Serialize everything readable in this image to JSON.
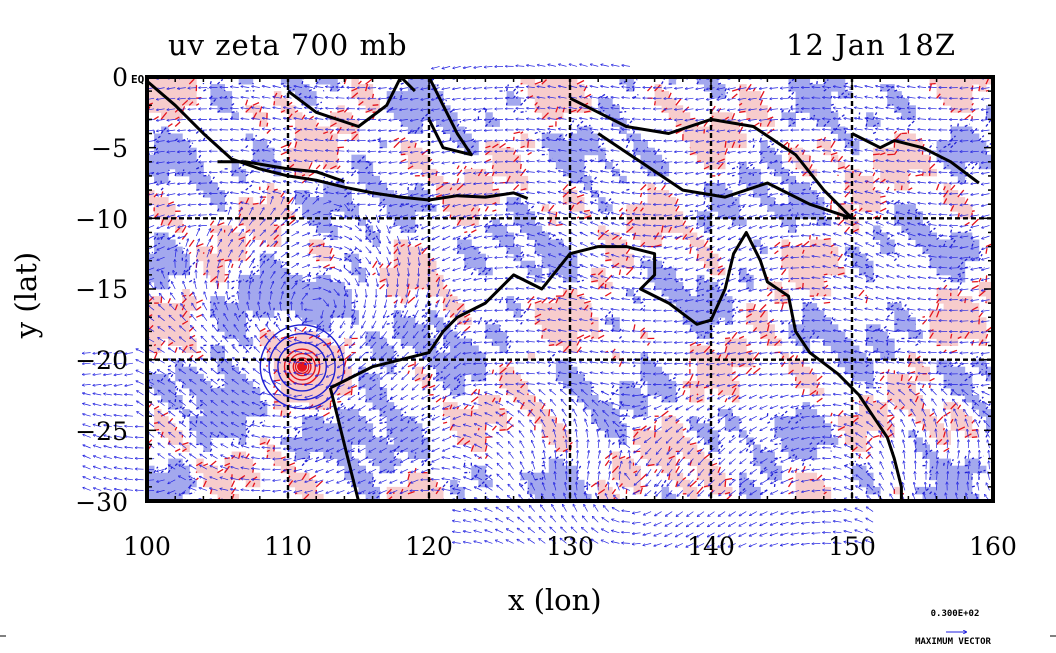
{
  "header": {
    "left_title": "uv zeta 700 mb",
    "right_title": "12 Jan 18Z"
  },
  "map": {
    "equator_label": "EQ",
    "x_label": "x (lon)",
    "y_label": "y (lat)",
    "x_ticks": [
      "100",
      "110",
      "120",
      "130",
      "140",
      "150",
      "160"
    ],
    "y_ticks": [
      "0",
      "−5",
      "−10",
      "−15",
      "−20",
      "−25",
      "−30"
    ],
    "lon_range": [
      100,
      160
    ],
    "lat_range": [
      -30,
      0
    ],
    "gridlines_lon": [
      110,
      120,
      130,
      140,
      150
    ],
    "gridlines_lat": [
      -10,
      -20
    ],
    "colors": {
      "positive_fill": "#f7cccc",
      "negative_fill": "#a3a8ee",
      "positive_contour": "#e4141c",
      "negative_contour": "#1f1fd2",
      "vectors": "#2020e0",
      "coastline": "#000000"
    },
    "cyclone_center": {
      "lon": 111,
      "lat": -20.5
    }
  },
  "reference_vector": {
    "value": "0.300E+02",
    "label": "MAXIMUM VECTOR"
  }
}
